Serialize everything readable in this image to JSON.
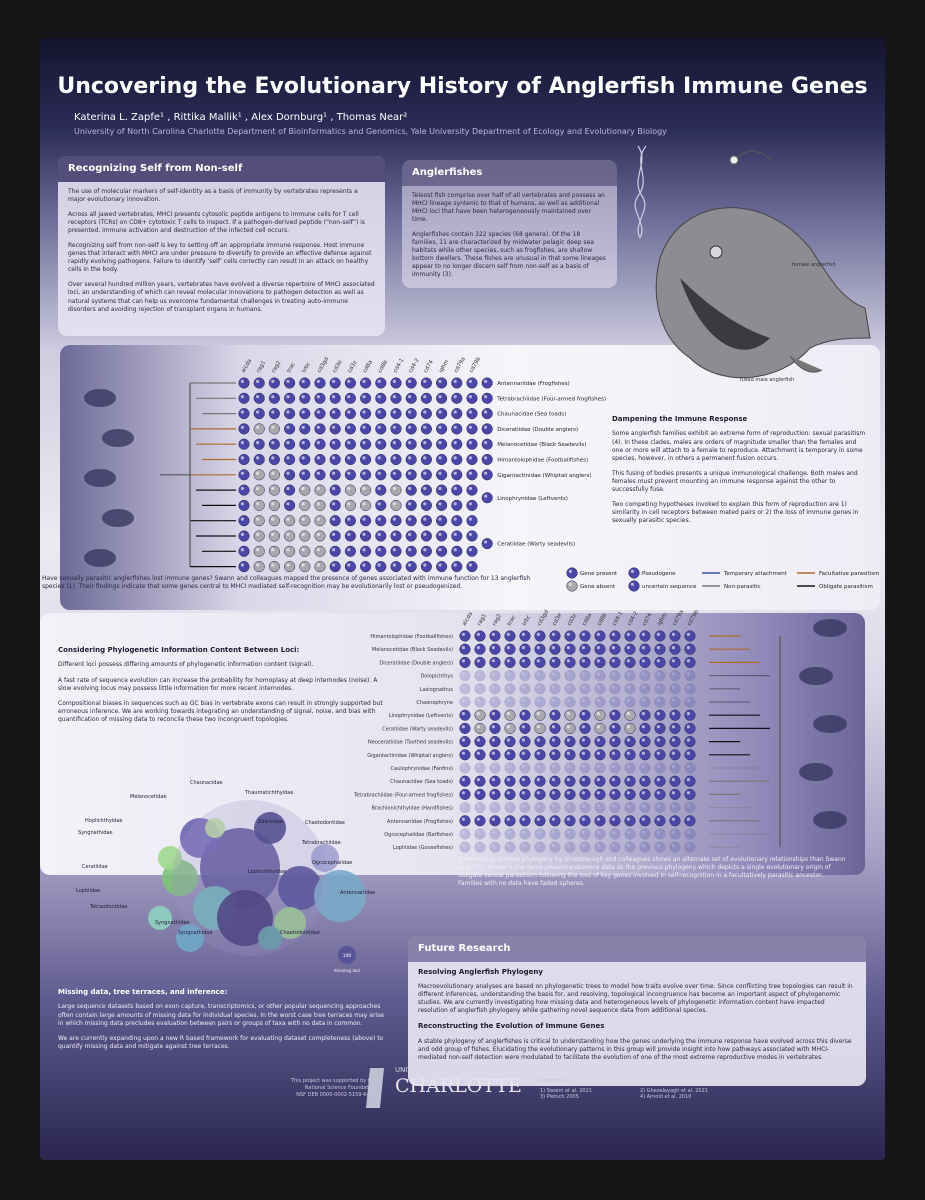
{
  "header": {
    "title": "Uncovering the Evolutionary History of Anglerfish Immune Genes",
    "authors": "Katerina L. Zapfe¹ , Rittika Mallik¹ , Alex Dornburg¹ , Thomas Near²",
    "affiliation": "University of North Carolina Charlotte Department of Bioinformatics and Genomics, Yale University Department of Ecology and Evolutionary Biology"
  },
  "self_box": {
    "title": "Recognizing Self from Non-self",
    "paragraphs": [
      "The use of molecular markers of self-identity as a basis of immunity by vertebrates represents a major evolutionary innovation.",
      "Across all jawed vertebrates, MHCI presents cytosolic peptide antigens to immune cells for T cell receptors (TCRs) on CD8+ cytotoxic T cells to inspect. If a pathogen-derived peptide (“non-self”) is presented, immune activation and destruction of the infected cell occurs.",
      "Recognizing self from non-self is key to setting off an appropriate immune response. Host immune genes that interact with MHCI are under pressure to diversify to provide an effective defense against rapidly evolving pathogens. Failure to identify ‘self’ cells correctly can result in an attack on healthy cells in the body.",
      "Over several hundred million years, vertebrates have evolved a diverse repertoire of MHCI associated loci, an understanding of which can reveal molecular innovations to pathogen detection as well as natural systems that can help us overcome fundamental challenges in treating auto-immune disorders and avoiding rejection of transplant organs in humans."
    ]
  },
  "anglerfish_box": {
    "title": "Anglerfishes",
    "paragraphs": [
      "Teleost fish comprise over half of all vertebrates and possess an MHCI lineage syntenic to that of humans, as well as additional MHCI loci that have been heterogeneously maintained over time.",
      "Anglerfishes contain 322 species (68 genera). Of the 18 families, 11 are characterized by midwater pelagic deep sea habitats while other species, such as frogfishes, are shallow bottom dwellers. These fishes are unusual in that some lineages appear to no longer discern self from non-self as a basis of immunity (3)."
    ]
  },
  "fish_labels": [
    "female anglerfish",
    "fused male anglerfish"
  ],
  "genes": [
    "aicda",
    "rag1",
    "rag2",
    "trac",
    "trbc",
    "cd3gd",
    "cd3e",
    "cd3z",
    "cd8a",
    "cd8b",
    "cd4-1",
    "cd4-2",
    "cd74",
    "ighm",
    "cd79a",
    "cd79b"
  ],
  "grid1": {
    "labels": [
      "Antennariidae (Frogfishes)",
      "Tetrabrachiidae (Four-armed frogfishes)",
      "Chaunacidae (Sea toads)",
      "Diceratiidae (Double anglers)",
      "Melanocetidae (Black Seadevils)",
      "Himantolophidae (Footballfishes)",
      "Gigantactinidae (Whiptail anglers)",
      "Linophrynidae (Leftvents)",
      "Ceratiidae (Warty seadevils)"
    ],
    "caption": "Have sexually parasitic anglerfishes lost immune genes? Swann and colleagues mapped the presence of genes associated with immune function for 13 anglerfish species (1). Their findings indicate that some genes central to MHCI mediated self-recognition may be evolutionarily lost or pseudogenized."
  },
  "dampening": {
    "title": "Dampening the Immune Response",
    "paragraphs": [
      "Some anglerfish families exhibit an extreme form of reproduction: sexual parasitism (4). In these clades, males are orders of magnitude smaller than the females and one or more will attach to a female to reproduce. Attachment is temporary in some species, however, in others a permanent fusion occurs.",
      "This fusing of bodies presents a unique immunological challenge. Both males and females must prevent mounting an immune response against the other to successfully fuse.",
      "Two competing hypotheses invoked to explain this form of reproduction are 1) similarity in cell receptors between mated pairs or 2) the loss of immune genes in sexually parasitic species."
    ]
  },
  "legend": {
    "gene_present": "Gene present",
    "gene_absent": "Gene absent",
    "pseudogene": "Pseudogene",
    "uncertain": "uncertain sequence",
    "temporary": "Temporary attachment",
    "non_parasitic": "Non-parasitic",
    "facultative": "Facultative parasitism",
    "obligate": "Obligate parasitism"
  },
  "considering": {
    "title": "Considering Phylogenetic Information Content Between Loci:",
    "paragraphs": [
      "Different loci possess differing amounts of phylogenetic information content (signal).",
      "A fast rate of sequence evolution can increase the probability for homoplasy at deep internodes (noise). A slow evolving locus may possess little information for more recent internodes.",
      "Compositional biases in sequences such as GC bias in vertebrate exons can result in strongly supported but erroneous inference. We are working towards integrating an understanding of signal, noise, and bias with quantification of missing data to reconcile these two incongruent topologies."
    ]
  },
  "grid2": {
    "labels": [
      "Himantolophidae (Footballfishes)",
      "Melanocetidae (Black Seadevils)",
      "Diceratiidae (Double anglers)",
      "Dolopichthys",
      "Lasiognathus",
      "Chaenophryne",
      "Linophrynidae (Leftvents)",
      "Ceratiidae (Warty seadevils)",
      "Neoceratiidae (Toothed seadevils)",
      "Gigantactinidae (Whiptail anglers)",
      "Caulophrynidae (Fanfins)",
      "Chaunacidae (Sea toads)",
      "Tetrabrachiidae (Four-armed frogfishes)",
      "Brachionichthyidae (Handfishes)",
      "Antennariidae (Frogfishes)",
      "Ogcocephalidae (Batfishes)",
      "Lophiidae (Goosefishes)"
    ],
    "caption": "A recently-published phylogeny by Ghezelayagh and colleagues shows an alternate set of evolutionary relationships than Swann et al. (2). Above is the same presence/absence data as the previous phylogeny which depicts a single evolutionary origin of obligate sexual parasitism following the loss of key genes involved in self-recognition in a facultatively parasitic ancestor. Families with no data have faded spheres."
  },
  "bubble_labels": [
    "Chaunacidae",
    "Thaumatichthyidae",
    "Melanocetidae",
    "Zoarcidae",
    "Chaetodontidae",
    "Hoplichthyidae",
    "Tetrabrachiidae",
    "Syngnathidae",
    "Ogcocephalidae",
    "Ceratiidae",
    "Lophiidae",
    "Antennariidae",
    "Tetraodontidae",
    "Syngnathidae",
    "Syngnathidae",
    "Chaetodontidae",
    "Lophichthyidae"
  ],
  "bubble_legend": {
    "value": "100",
    "label": "missing loci"
  },
  "missing": {
    "title": "Missing data, tree terraces, and inference:",
    "paragraphs": [
      "Large sequence datasets based on exon capture, transcriptomics, or other popular sequencing approaches often contain large amounts of missing data for individual species. In the worst case tree terraces may arise in which missing data precludes evaluation between pairs or groups of taxa with no data in common.",
      "We are currently expanding upon a new R based framework for evaluating dataset completeness (above) to quantify missing data and mitigate against tree terraces."
    ]
  },
  "future": {
    "title": "Future Research",
    "sub1": "Resolving Anglerfish Phylogeny",
    "p1": "Macroevolutionary analyses are based on phylogenetic trees to model how traits evolve over time. Since conflicting tree topologies can result in different inferences, understanding the basis for, and resolving, topological incongruence has become an important aspect of phylogenomic studies. We are currently investigating how missing data and heterogeneous levels of phylogenetic information content have impacted resolution of anglerfish phylogeny while gathering novel sequence data from additional species.",
    "sub2": "Reconstructing the Evolution of Immune Genes",
    "p2": "A stable phylogeny of anglerfishes is critical to understanding how the genes underlying the immune response have evolved across this diverse and odd group of fishes. Elucidating the evolutionary patterns in this group will provide insight into how pathways associated with MHCI-mediated non-self detection were modulated to facilitate the evolution of one of the most extreme reproductive modes in vertebrates."
  },
  "footer": {
    "funding": [
      "This project was supported by the",
      "National Science Foundation",
      "NSF DEB 0000-0002-5159-6433"
    ],
    "logo_top": "UNIVERSITY OF NORTH CAROLINA",
    "logo_main": "CHARLOTTE",
    "references_title": "References",
    "references": [
      "1) Swann et al. 2021",
      "2) Ghezelayagh et al. 2021",
      "3) Pietsch 2005",
      "4) Arnold et al. 2010"
    ]
  }
}
